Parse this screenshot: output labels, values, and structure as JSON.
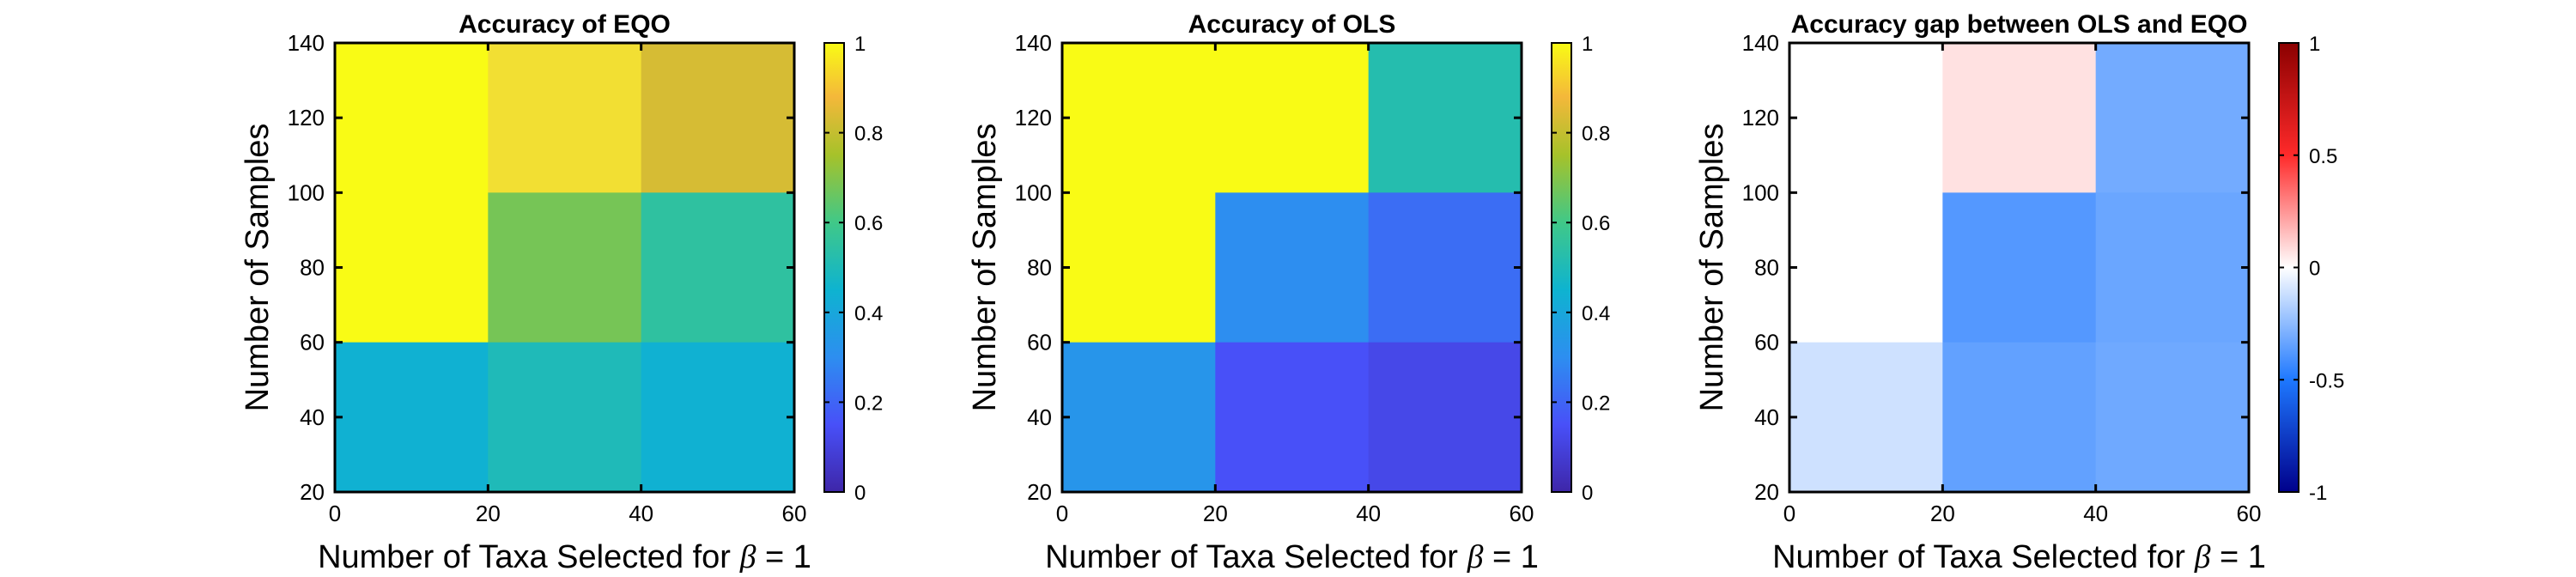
{
  "chart_data": [
    {
      "type": "heatmap",
      "title": "Accuracy of EQO",
      "xlabel_prefix": "Number of Taxa Selected for ",
      "xlabel_symbol": "β",
      "xlabel_suffix": " = 1",
      "ylabel": "Number of Samples",
      "x_edges": [
        0,
        20,
        40,
        60
      ],
      "y_edges": [
        20,
        60,
        100,
        140
      ],
      "xlim": [
        0,
        60
      ],
      "ylim": [
        20,
        140
      ],
      "x_ticks": [
        "0",
        "20",
        "40",
        "60"
      ],
      "y_ticks": [
        "20",
        "40",
        "60",
        "80",
        "100",
        "120",
        "140"
      ],
      "values_top_to_bottom": [
        [
          1.0,
          0.93,
          0.83
        ],
        [
          1.0,
          0.68,
          0.55
        ],
        [
          0.44,
          0.5,
          0.44
        ]
      ],
      "colorbar": {
        "colormap": "parula",
        "range": [
          0,
          1
        ],
        "ticks": [
          "0",
          "0.2",
          "0.4",
          "0.6",
          "0.8",
          "1"
        ]
      }
    },
    {
      "type": "heatmap",
      "title": "Accuracy of OLS",
      "xlabel_prefix": "Number of Taxa Selected for ",
      "xlabel_symbol": "β",
      "xlabel_suffix": " = 1",
      "ylabel": "Number of Samples",
      "x_edges": [
        0,
        20,
        40,
        60
      ],
      "y_edges": [
        20,
        60,
        100,
        140
      ],
      "xlim": [
        0,
        60
      ],
      "ylim": [
        20,
        140
      ],
      "x_ticks": [
        "0",
        "20",
        "40",
        "60"
      ],
      "y_ticks": [
        "20",
        "40",
        "60",
        "80",
        "100",
        "120",
        "140"
      ],
      "values_top_to_bottom": [
        [
          1.0,
          1.0,
          0.52
        ],
        [
          1.0,
          0.3,
          0.22
        ],
        [
          0.33,
          0.15,
          0.12
        ]
      ],
      "colorbar": {
        "colormap": "parula",
        "range": [
          0,
          1
        ],
        "ticks": [
          "0",
          "0.2",
          "0.4",
          "0.6",
          "0.8",
          "1"
        ]
      }
    },
    {
      "type": "heatmap",
      "title": "Accuracy gap between OLS and EQO",
      "xlabel_prefix": "Number of Taxa Selected for ",
      "xlabel_symbol": "β",
      "xlabel_suffix": " = 1",
      "ylabel": "Number of Samples",
      "x_edges": [
        0,
        20,
        40,
        60
      ],
      "y_edges": [
        20,
        60,
        100,
        140
      ],
      "xlim": [
        0,
        60
      ],
      "ylim": [
        20,
        140
      ],
      "x_ticks": [
        "0",
        "20",
        "40",
        "60"
      ],
      "y_ticks": [
        "20",
        "40",
        "60",
        "80",
        "100",
        "120",
        "140"
      ],
      "values_top_to_bottom": [
        [
          0.0,
          0.07,
          -0.31
        ],
        [
          0.0,
          -0.38,
          -0.33
        ],
        [
          -0.11,
          -0.35,
          -0.32
        ]
      ],
      "colorbar": {
        "colormap": "diverging-blue-white-red",
        "range": [
          -1,
          1
        ],
        "ticks": [
          "-1",
          "-0.5",
          "0",
          "0.5",
          "1"
        ]
      }
    }
  ]
}
